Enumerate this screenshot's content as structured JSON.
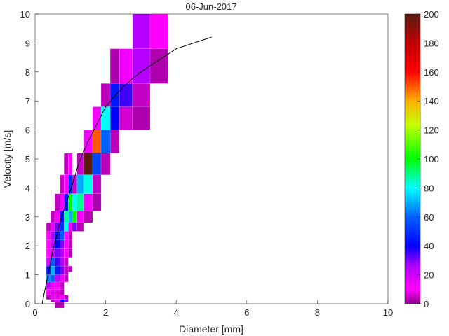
{
  "chart_data": {
    "type": "heatmap",
    "title": "06-Jun-2017",
    "xlabel": "Diameter [mm]",
    "ylabel": "Velocity [m/s]",
    "xlim": [
      0,
      10
    ],
    "ylim": [
      0,
      10
    ],
    "xticks": [
      0,
      2,
      4,
      6,
      8,
      10
    ],
    "yticks": [
      0,
      1,
      2,
      3,
      4,
      5,
      6,
      7,
      8,
      9,
      10
    ],
    "colorbar": {
      "range": [
        0,
        200
      ],
      "ticks": [
        0,
        20,
        40,
        60,
        80,
        100,
        120,
        140,
        160,
        180,
        200
      ]
    },
    "cells_format": "[x0, x1, y0, y1, count]",
    "cells": [
      [
        2.76,
        3.26,
        8.8,
        10,
        25
      ],
      [
        3.26,
        3.76,
        8.8,
        10,
        10
      ],
      [
        2.13,
        2.39,
        7.6,
        8.8,
        3
      ],
      [
        2.39,
        2.76,
        7.6,
        8.8,
        12
      ],
      [
        2.76,
        3.26,
        7.6,
        8.8,
        25
      ],
      [
        3.26,
        3.76,
        7.6,
        8.8,
        3
      ],
      [
        1.87,
        2.13,
        6.8,
        7.6,
        4
      ],
      [
        2.13,
        2.39,
        6.8,
        7.6,
        45
      ],
      [
        2.39,
        2.76,
        6.8,
        7.6,
        35
      ],
      [
        2.76,
        3.26,
        6.8,
        7.6,
        5
      ],
      [
        1.63,
        1.87,
        6.0,
        6.8,
        12
      ],
      [
        1.87,
        2.13,
        6.0,
        6.8,
        80
      ],
      [
        2.13,
        2.39,
        6.0,
        6.8,
        40
      ],
      [
        2.39,
        2.76,
        6.0,
        6.8,
        6
      ],
      [
        2.76,
        3.26,
        6.0,
        6.8,
        3
      ],
      [
        1.39,
        1.63,
        5.2,
        6.0,
        12
      ],
      [
        1.63,
        1.87,
        5.2,
        6.0,
        150
      ],
      [
        1.87,
        2.13,
        5.2,
        6.0,
        60
      ],
      [
        2.13,
        2.39,
        5.2,
        6.0,
        4
      ],
      [
        0.82,
        0.94,
        4.45,
        5.2,
        5
      ],
      [
        0.94,
        1.05,
        4.45,
        5.2,
        10
      ],
      [
        1.19,
        1.39,
        4.45,
        5.2,
        5
      ],
      [
        1.39,
        1.63,
        4.45,
        5.2,
        200
      ],
      [
        1.63,
        1.87,
        4.45,
        5.2,
        55
      ],
      [
        1.87,
        2.13,
        4.45,
        5.2,
        4
      ],
      [
        0.7,
        0.82,
        3.8,
        4.45,
        5
      ],
      [
        0.82,
        0.94,
        3.8,
        4.45,
        12
      ],
      [
        0.94,
        1.05,
        3.8,
        4.45,
        50
      ],
      [
        1.05,
        1.19,
        3.8,
        4.45,
        6
      ],
      [
        1.19,
        1.39,
        3.8,
        4.45,
        70
      ],
      [
        1.39,
        1.63,
        3.8,
        4.45,
        82
      ],
      [
        1.63,
        1.87,
        3.8,
        4.45,
        5
      ],
      [
        0.56,
        0.7,
        3.2,
        3.8,
        5
      ],
      [
        0.7,
        0.82,
        3.2,
        3.8,
        12
      ],
      [
        0.82,
        0.94,
        3.2,
        3.8,
        45
      ],
      [
        0.94,
        1.05,
        3.2,
        3.8,
        100
      ],
      [
        1.05,
        1.19,
        3.2,
        3.8,
        80
      ],
      [
        1.19,
        1.39,
        3.2,
        3.8,
        88
      ],
      [
        1.39,
        1.63,
        3.2,
        3.8,
        12
      ],
      [
        1.63,
        1.87,
        3.2,
        3.8,
        3
      ],
      [
        0.44,
        0.56,
        2.8,
        3.2,
        5
      ],
      [
        0.56,
        0.7,
        2.8,
        3.2,
        12
      ],
      [
        0.7,
        0.82,
        2.8,
        3.2,
        45
      ],
      [
        0.82,
        0.94,
        2.8,
        3.2,
        88
      ],
      [
        0.94,
        1.05,
        2.8,
        3.2,
        70
      ],
      [
        1.05,
        1.19,
        2.8,
        3.2,
        100
      ],
      [
        1.19,
        1.39,
        2.8,
        3.2,
        12
      ],
      [
        1.39,
        1.63,
        2.8,
        3.2,
        4
      ],
      [
        0.32,
        0.44,
        2.5,
        2.8,
        4
      ],
      [
        0.44,
        0.56,
        2.5,
        2.8,
        12
      ],
      [
        0.56,
        0.7,
        2.5,
        2.8,
        30
      ],
      [
        0.7,
        0.82,
        2.5,
        2.8,
        50
      ],
      [
        0.82,
        0.94,
        2.5,
        2.8,
        80
      ],
      [
        0.94,
        1.05,
        2.5,
        2.8,
        12
      ],
      [
        1.05,
        1.19,
        2.5,
        2.8,
        30
      ],
      [
        1.19,
        1.39,
        2.5,
        2.8,
        4
      ],
      [
        0.32,
        0.44,
        2.2,
        2.5,
        10
      ],
      [
        0.44,
        0.56,
        2.2,
        2.5,
        25
      ],
      [
        0.56,
        0.7,
        2.2,
        2.5,
        45
      ],
      [
        0.7,
        0.82,
        2.2,
        2.5,
        60
      ],
      [
        0.82,
        0.94,
        2.2,
        2.5,
        10
      ],
      [
        0.94,
        1.05,
        2.2,
        2.5,
        4
      ],
      [
        0.32,
        0.44,
        1.9,
        2.2,
        10
      ],
      [
        0.44,
        0.56,
        1.9,
        2.2,
        20
      ],
      [
        0.56,
        0.7,
        1.9,
        2.2,
        40
      ],
      [
        0.7,
        0.82,
        1.9,
        2.2,
        30
      ],
      [
        0.82,
        0.94,
        1.9,
        2.2,
        12
      ],
      [
        0.94,
        1.05,
        1.9,
        2.2,
        4
      ],
      [
        0.32,
        0.44,
        1.6,
        1.9,
        10
      ],
      [
        0.44,
        0.56,
        1.6,
        1.9,
        20
      ],
      [
        0.56,
        0.7,
        1.6,
        1.9,
        30
      ],
      [
        0.7,
        0.82,
        1.6,
        1.9,
        25
      ],
      [
        0.82,
        0.94,
        1.6,
        1.9,
        10
      ],
      [
        0.94,
        1.05,
        1.6,
        1.9,
        3
      ],
      [
        0.32,
        0.44,
        1.3,
        1.6,
        20
      ],
      [
        0.44,
        0.56,
        1.3,
        1.6,
        60
      ],
      [
        0.56,
        0.7,
        1.3,
        1.6,
        35
      ],
      [
        0.7,
        0.82,
        1.3,
        1.6,
        25
      ],
      [
        0.82,
        0.94,
        1.3,
        1.6,
        5
      ],
      [
        0.32,
        0.44,
        1.0,
        1.3,
        45
      ],
      [
        0.44,
        0.56,
        1.0,
        1.3,
        70
      ],
      [
        0.56,
        0.7,
        1.0,
        1.3,
        45
      ],
      [
        0.7,
        0.82,
        1.0,
        1.3,
        30
      ],
      [
        0.82,
        0.94,
        1.0,
        1.3,
        5
      ],
      [
        0.32,
        0.44,
        0.75,
        1.0,
        65
      ],
      [
        0.44,
        0.56,
        0.75,
        1.0,
        60
      ],
      [
        0.56,
        0.7,
        0.75,
        1.0,
        25
      ],
      [
        0.7,
        0.82,
        0.75,
        1.0,
        12
      ],
      [
        0.82,
        0.94,
        0.75,
        1.0,
        5
      ],
      [
        0.94,
        1.05,
        1.1,
        1.3,
        4
      ],
      [
        0.32,
        0.44,
        0.5,
        0.75,
        25
      ],
      [
        0.44,
        0.56,
        0.5,
        0.75,
        12
      ],
      [
        0.56,
        0.7,
        0.5,
        0.75,
        10
      ],
      [
        0.7,
        0.82,
        0.5,
        0.75,
        5
      ],
      [
        0.32,
        0.44,
        0.3,
        0.5,
        10
      ],
      [
        0.44,
        0.56,
        0.3,
        0.5,
        15
      ],
      [
        0.56,
        0.7,
        0.3,
        0.5,
        8
      ],
      [
        0.7,
        0.82,
        0.3,
        0.5,
        4
      ],
      [
        0.32,
        0.44,
        0.15,
        0.3,
        4
      ],
      [
        0.44,
        0.56,
        0.15,
        0.3,
        12
      ],
      [
        0.56,
        0.7,
        0.15,
        0.3,
        8
      ],
      [
        0.7,
        0.82,
        0.15,
        0.3,
        12
      ],
      [
        0.82,
        0.94,
        0.15,
        0.3,
        4
      ],
      [
        0.44,
        0.56,
        0.05,
        0.15,
        4
      ],
      [
        0.56,
        0.7,
        0.05,
        0.15,
        15
      ],
      [
        0.7,
        0.82,
        0.05,
        0.15,
        40
      ],
      [
        0.82,
        0.94,
        0.05,
        0.15,
        30
      ],
      [
        0.56,
        0.82,
        -0.1,
        0.05,
        4
      ]
    ],
    "fit_line": {
      "x": [
        0.2,
        0.5,
        0.75,
        1.0,
        1.25,
        1.5,
        1.75,
        2.0,
        2.5,
        3.0,
        4.0,
        5.0
      ],
      "y": [
        0.0,
        1.8,
        3.0,
        3.9,
        4.9,
        5.6,
        6.2,
        6.8,
        7.5,
        8.0,
        8.8,
        9.2
      ]
    }
  }
}
